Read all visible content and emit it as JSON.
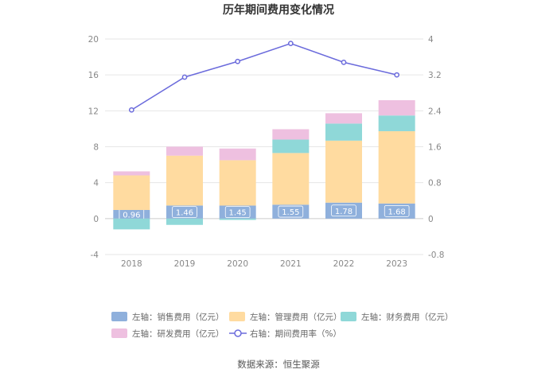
{
  "chart_data": {
    "type": "bar",
    "title": "历年期间费用变化情况",
    "categories": [
      "2018",
      "2019",
      "2020",
      "2021",
      "2022",
      "2023"
    ],
    "series": [
      {
        "name": "左轴：销售费用（亿元）",
        "axis": "left",
        "kind": "stacked-bar",
        "color": "#8fb0dc",
        "values": [
          0.96,
          1.46,
          1.45,
          1.55,
          1.78,
          1.68
        ],
        "labels": [
          "0.96",
          "1.46",
          "1.45",
          "1.55",
          "1.78",
          "1.68"
        ]
      },
      {
        "name": "左轴：管理费用（亿元）",
        "axis": "left",
        "kind": "stacked-bar",
        "color": "#ffdba0",
        "values": [
          3.85,
          5.55,
          5.05,
          5.75,
          6.9,
          8.05
        ]
      },
      {
        "name": "左轴：财务费用（亿元）",
        "axis": "left",
        "kind": "stacked-bar",
        "color": "#8fd8d8",
        "values": [
          -1.2,
          -0.7,
          -0.15,
          1.5,
          1.9,
          1.75
        ]
      },
      {
        "name": "左轴：研发费用（亿元）",
        "axis": "left",
        "kind": "stacked-bar",
        "color": "#eec0e0",
        "values": [
          0.45,
          1.0,
          1.3,
          1.15,
          1.15,
          1.7
        ]
      },
      {
        "name": "右轴：期间费用率（%）",
        "axis": "right",
        "kind": "line",
        "color": "#6b6bdc",
        "values": [
          2.42,
          3.15,
          3.5,
          3.9,
          3.48,
          3.2
        ]
      }
    ],
    "y_left": {
      "min": -4,
      "max": 20,
      "ticks": [
        "20",
        "16",
        "12",
        "8",
        "4",
        "0",
        "-4"
      ]
    },
    "y_right": {
      "min": -0.8,
      "max": 4,
      "ticks": [
        "4",
        "3.2",
        "2.4",
        "1.6",
        "0.8",
        "0",
        "-0.8"
      ]
    },
    "grid": true,
    "legend": "bottom"
  },
  "source": "数据来源：恒生聚源"
}
